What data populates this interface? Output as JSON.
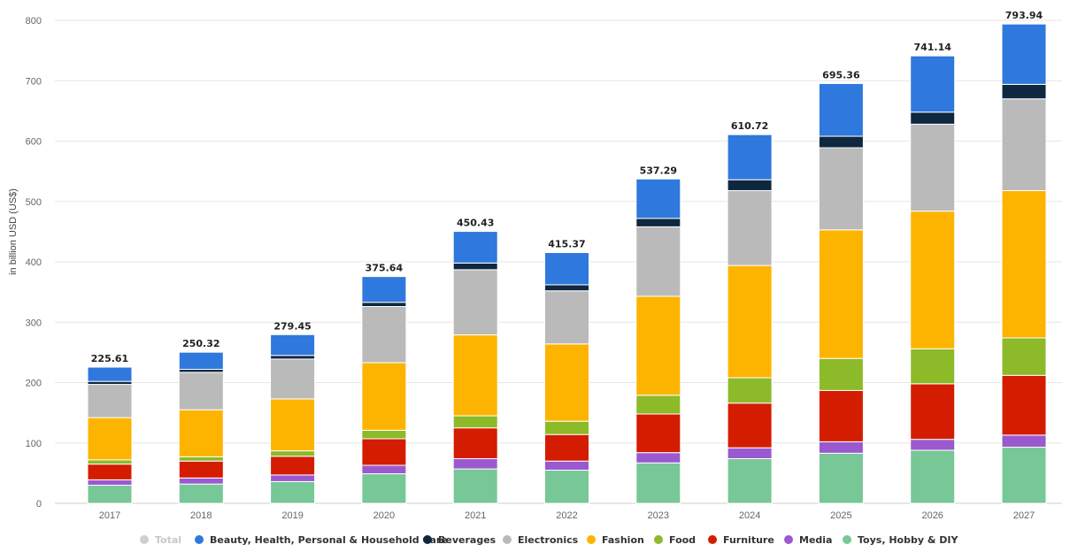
{
  "chart_data": {
    "type": "bar",
    "stacked": true,
    "title": "",
    "xlabel": "",
    "ylabel": "in billion USD (US$)",
    "ylim": [
      0,
      800
    ],
    "yticks": [
      0,
      100,
      200,
      300,
      400,
      500,
      600,
      700,
      800
    ],
    "grid": true,
    "legend_position": "bottom",
    "categories": [
      "2017",
      "2018",
      "2019",
      "2020",
      "2021",
      "2022",
      "2023",
      "2024",
      "2025",
      "2026",
      "2027"
    ],
    "totals": [
      "225.61",
      "250.32",
      "279.45",
      "375.64",
      "450.43",
      "415.37",
      "537.29",
      "610.72",
      "695.36",
      "741.14",
      "793.94"
    ],
    "total_series": {
      "name": "Total",
      "color": "#cfcfcf",
      "hidden": true
    },
    "series": [
      {
        "name": "Toys, Hobby & DIY",
        "color": "#78c797",
        "values": [
          30,
          32,
          36,
          49,
          57,
          55,
          67,
          74,
          83,
          88,
          93
        ]
      },
      {
        "name": "Media",
        "color": "#9b59d0",
        "values": [
          9,
          10,
          11,
          14,
          17,
          15,
          17,
          18,
          19,
          18,
          20
        ]
      },
      {
        "name": "Furniture",
        "color": "#d41c00",
        "values": [
          26,
          28,
          31,
          44,
          51,
          44,
          64,
          74,
          85,
          92,
          99
        ]
      },
      {
        "name": "Food",
        "color": "#8cba29",
        "values": [
          7,
          7,
          9,
          14,
          20,
          22,
          31,
          42,
          53,
          58,
          62
        ]
      },
      {
        "name": "Fashion",
        "color": "#fdb400",
        "values": [
          70,
          78,
          86,
          112,
          134,
          128,
          164,
          186,
          213,
          228,
          244
        ]
      },
      {
        "name": "Electronics",
        "color": "#bababa",
        "values": [
          55,
          62,
          66,
          93,
          108,
          88,
          115,
          124,
          136,
          144,
          152
        ]
      },
      {
        "name": "Beverages",
        "color": "#0f2840",
        "values": [
          5,
          5,
          6,
          7,
          11,
          10,
          14,
          18,
          19,
          20,
          24
        ]
      },
      {
        "name": "Beauty, Health, Personal & Household Care",
        "color": "#2f78dd",
        "values": [
          23.61,
          28.32,
          34.45,
          42.64,
          52.43,
          53.37,
          65.29,
          74.72,
          87.36,
          93.14,
          99.94
        ]
      }
    ],
    "legend_order": [
      "Total",
      "Beauty, Health, Personal & Household Care",
      "Beverages",
      "Electronics",
      "Fashion",
      "Food",
      "Furniture",
      "Media",
      "Toys, Hobby & DIY"
    ]
  }
}
